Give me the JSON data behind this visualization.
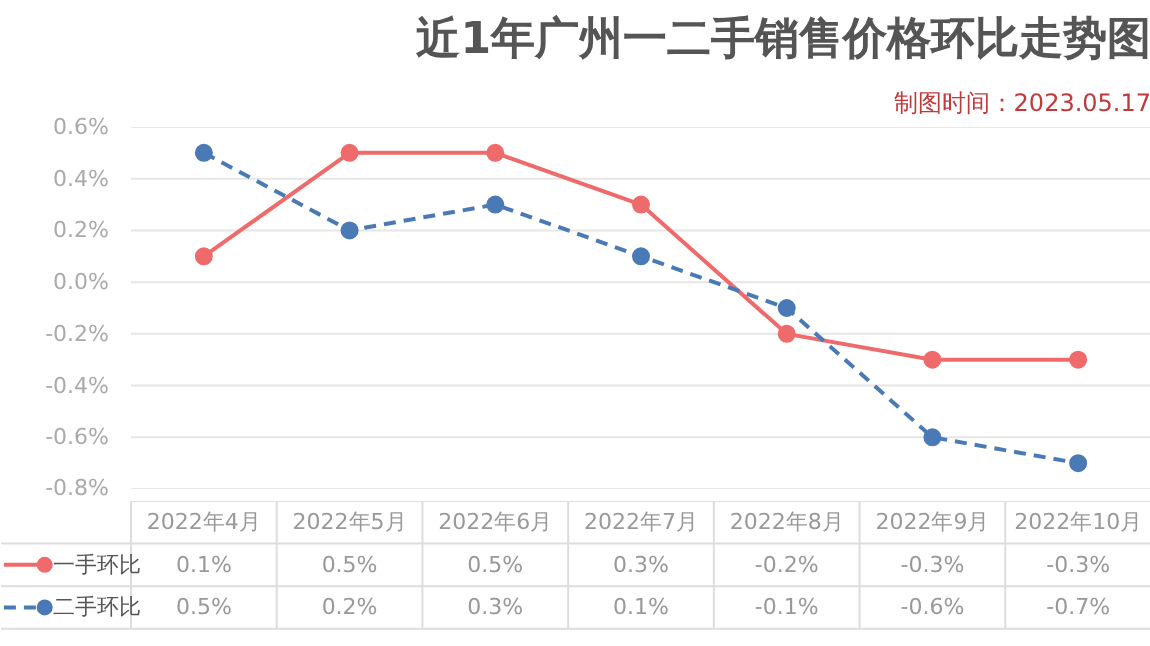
{
  "chart_data": {
    "type": "line",
    "title": "近1年广州一二手销售价格环比走势图",
    "subtitle": "制图时间：2023.05.17",
    "categories": [
      "2022年4月",
      "2022年5月",
      "2022年6月",
      "2022年7月",
      "2022年8月",
      "2022年9月",
      "2022年10月"
    ],
    "series": [
      {
        "name": "一手环比",
        "color": "#ef6b6b",
        "line_style": "solid",
        "values": [
          0.1,
          0.5,
          0.5,
          0.3,
          -0.2,
          -0.3,
          -0.3
        ],
        "value_labels": [
          "0.1%",
          "0.5%",
          "0.5%",
          "0.3%",
          "-0.2%",
          "-0.3%",
          "-0.3%"
        ]
      },
      {
        "name": "二手环比",
        "color": "#4a7ab5",
        "line_style": "dashed",
        "values": [
          0.5,
          0.2,
          0.3,
          0.1,
          -0.1,
          -0.6,
          -0.7
        ],
        "value_labels": [
          "0.5%",
          "0.2%",
          "0.3%",
          "0.1%",
          "-0.1%",
          "-0.6%",
          "-0.7%"
        ]
      }
    ],
    "ylim": [
      -0.8,
      0.6
    ],
    "yticks": [
      {
        "value": -0.8,
        "label": "-0.8%"
      },
      {
        "value": -0.6,
        "label": "-0.6%"
      },
      {
        "value": -0.4,
        "label": "-0.4%"
      },
      {
        "value": -0.2,
        "label": "-0.2%"
      },
      {
        "value": 0.0,
        "label": "0.0%"
      },
      {
        "value": 0.2,
        "label": "0.2%"
      },
      {
        "value": 0.4,
        "label": "0.4%"
      },
      {
        "value": 0.6,
        "label": "0.6%"
      }
    ],
    "grid": "y",
    "marker": "circle",
    "legend": "bottom left"
  }
}
